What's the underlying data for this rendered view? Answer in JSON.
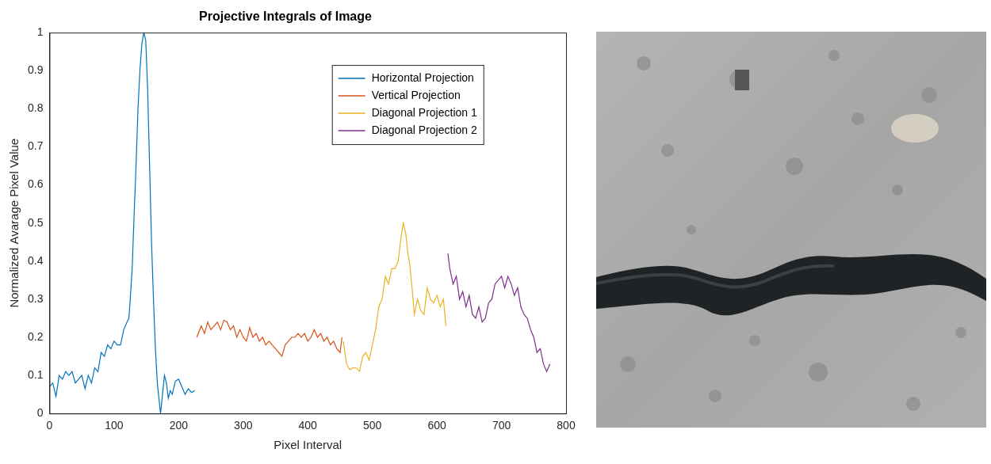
{
  "chart_data": {
    "type": "line",
    "title": "Projective Integrals of Image",
    "x_label": "Pixel Interval",
    "y_label": "Normalized Avarage Pixel Value",
    "xlim": [
      0,
      800
    ],
    "xticks": [
      0,
      100,
      200,
      300,
      400,
      500,
      600,
      700,
      800
    ],
    "ylim": [
      0,
      1
    ],
    "yticks": [
      0,
      0.1,
      0.2,
      0.3,
      0.4,
      0.5,
      0.6,
      0.7,
      0.8,
      0.9,
      1
    ],
    "grid": false,
    "legend": "upper right",
    "series": [
      {
        "name": "Horizontal Projection",
        "color": "#0072bd",
        "x": [
          0,
          5,
          10,
          15,
          20,
          25,
          30,
          35,
          40,
          45,
          50,
          55,
          60,
          65,
          70,
          75,
          80,
          85,
          90,
          95,
          100,
          105,
          110,
          115,
          120,
          123,
          125,
          128,
          131,
          134,
          137,
          140,
          143,
          146,
          149,
          152,
          155,
          158,
          161,
          164,
          167,
          170,
          172,
          175,
          178,
          181,
          184,
          187,
          190,
          195,
          200,
          205,
          210,
          215,
          220,
          225
        ],
        "values": [
          0.07,
          0.08,
          0.045,
          0.1,
          0.09,
          0.11,
          0.1,
          0.11,
          0.08,
          0.09,
          0.1,
          0.065,
          0.1,
          0.08,
          0.12,
          0.11,
          0.16,
          0.15,
          0.18,
          0.17,
          0.19,
          0.18,
          0.18,
          0.22,
          0.24,
          0.25,
          0.3,
          0.38,
          0.52,
          0.65,
          0.8,
          0.9,
          0.97,
          1.0,
          0.98,
          0.85,
          0.65,
          0.45,
          0.3,
          0.17,
          0.08,
          0.03,
          0.0,
          0.05,
          0.1,
          0.08,
          0.04,
          0.06,
          0.05,
          0.085,
          0.09,
          0.07,
          0.05,
          0.065,
          0.055,
          0.06
        ]
      },
      {
        "name": "Vertical Projection",
        "color": "#d95319",
        "x": [
          228,
          235,
          240,
          245,
          250,
          255,
          260,
          265,
          270,
          275,
          280,
          285,
          290,
          295,
          300,
          305,
          310,
          315,
          320,
          325,
          330,
          335,
          340,
          345,
          350,
          355,
          360,
          365,
          370,
          375,
          380,
          385,
          390,
          395,
          400,
          405,
          410,
          415,
          420,
          425,
          430,
          435,
          440,
          445,
          450,
          453
        ],
        "values": [
          0.2,
          0.23,
          0.21,
          0.24,
          0.22,
          0.23,
          0.24,
          0.22,
          0.245,
          0.24,
          0.22,
          0.23,
          0.2,
          0.22,
          0.2,
          0.19,
          0.225,
          0.2,
          0.21,
          0.19,
          0.2,
          0.18,
          0.19,
          0.18,
          0.17,
          0.16,
          0.15,
          0.18,
          0.19,
          0.2,
          0.2,
          0.21,
          0.2,
          0.21,
          0.19,
          0.2,
          0.22,
          0.2,
          0.21,
          0.19,
          0.2,
          0.18,
          0.19,
          0.17,
          0.16,
          0.2
        ]
      },
      {
        "name": "Diagonal Projection 1",
        "color": "#edb120",
        "x": [
          455,
          460,
          465,
          470,
          475,
          480,
          485,
          490,
          495,
          500,
          505,
          510,
          515,
          520,
          525,
          530,
          535,
          540,
          545,
          548,
          552,
          555,
          558,
          562,
          565,
          570,
          575,
          580,
          585,
          590,
          595,
          600,
          605,
          610,
          614
        ],
        "values": [
          0.19,
          0.13,
          0.115,
          0.12,
          0.12,
          0.11,
          0.15,
          0.16,
          0.14,
          0.18,
          0.22,
          0.28,
          0.3,
          0.36,
          0.34,
          0.38,
          0.38,
          0.4,
          0.47,
          0.5,
          0.47,
          0.42,
          0.39,
          0.32,
          0.26,
          0.3,
          0.27,
          0.26,
          0.33,
          0.3,
          0.29,
          0.31,
          0.28,
          0.3,
          0.23
        ]
      },
      {
        "name": "Diagonal Projection 2",
        "color": "#7e2f8e",
        "x": [
          617,
          620,
          625,
          630,
          635,
          640,
          645,
          650,
          655,
          660,
          665,
          670,
          675,
          680,
          685,
          690,
          695,
          700,
          705,
          710,
          715,
          720,
          725,
          730,
          735,
          740,
          745,
          750,
          755,
          760,
          765,
          770,
          775
        ],
        "values": [
          0.42,
          0.38,
          0.34,
          0.36,
          0.3,
          0.32,
          0.28,
          0.31,
          0.26,
          0.25,
          0.28,
          0.24,
          0.25,
          0.29,
          0.3,
          0.34,
          0.35,
          0.36,
          0.33,
          0.36,
          0.34,
          0.31,
          0.33,
          0.28,
          0.26,
          0.25,
          0.22,
          0.2,
          0.16,
          0.17,
          0.13,
          0.11,
          0.13
        ]
      }
    ]
  }
}
